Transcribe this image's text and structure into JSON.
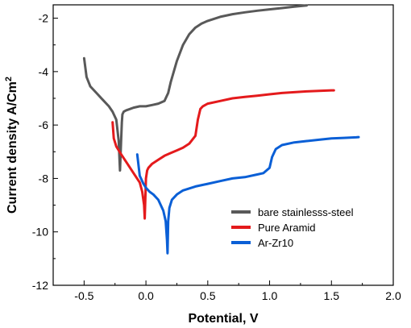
{
  "chart_data": {
    "type": "line",
    "xlabel": "Potential, V",
    "ylabel_main": "Current density A/Cm",
    "ylabel_sup": "2",
    "xlim": [
      -0.75,
      2.0
    ],
    "ylim": [
      -12,
      -1.5
    ],
    "xticks": [
      -0.5,
      0.0,
      0.5,
      1.0,
      1.5,
      2.0
    ],
    "xtick_labels": [
      "-0.5",
      "0.0",
      "0.5",
      "1.0",
      "1.5",
      "2.0"
    ],
    "yticks": [
      -2,
      -4,
      -6,
      -8,
      -10,
      -12
    ],
    "ytick_labels": [
      "-2",
      "-4",
      "-6",
      "-8",
      "-10",
      "-12"
    ],
    "grid": false,
    "legend_position": "lower-right",
    "series": [
      {
        "name": "bare stainlesss-steel",
        "color": "#595959",
        "x": [
          -0.5,
          -0.48,
          -0.45,
          -0.4,
          -0.35,
          -0.3,
          -0.27,
          -0.24,
          -0.22,
          -0.21,
          -0.2,
          -0.195,
          -0.19,
          -0.18,
          -0.16,
          -0.13,
          -0.1,
          -0.05,
          0.0,
          0.05,
          0.1,
          0.15,
          0.18,
          0.2,
          0.25,
          0.3,
          0.35,
          0.4,
          0.45,
          0.5,
          0.6,
          0.7,
          0.8,
          0.9,
          1.0,
          1.1,
          1.2,
          1.3
        ],
        "y": [
          -3.5,
          -4.2,
          -4.55,
          -4.8,
          -5.05,
          -5.3,
          -5.5,
          -5.8,
          -6.6,
          -7.7,
          -6.5,
          -5.9,
          -5.6,
          -5.5,
          -5.45,
          -5.4,
          -5.35,
          -5.3,
          -5.3,
          -5.25,
          -5.2,
          -5.1,
          -4.8,
          -4.4,
          -3.6,
          -3.0,
          -2.6,
          -2.35,
          -2.2,
          -2.1,
          -1.95,
          -1.85,
          -1.78,
          -1.72,
          -1.67,
          -1.62,
          -1.57,
          -1.52
        ]
      },
      {
        "name": "Pure Aramid",
        "color": "#e41a1c",
        "x": [
          -0.27,
          -0.26,
          -0.24,
          -0.2,
          -0.15,
          -0.1,
          -0.05,
          -0.03,
          -0.015,
          -0.01,
          -0.005,
          0.0,
          0.01,
          0.02,
          0.05,
          0.1,
          0.15,
          0.2,
          0.25,
          0.3,
          0.35,
          0.4,
          0.42,
          0.44,
          0.46,
          0.5,
          0.6,
          0.7,
          0.8,
          0.9,
          1.0,
          1.1,
          1.2,
          1.3,
          1.4,
          1.5,
          1.52
        ],
        "y": [
          -5.9,
          -6.5,
          -6.8,
          -7.1,
          -7.45,
          -7.8,
          -8.15,
          -8.5,
          -9.0,
          -9.5,
          -8.8,
          -8.0,
          -7.7,
          -7.6,
          -7.45,
          -7.3,
          -7.15,
          -7.05,
          -6.95,
          -6.85,
          -6.7,
          -6.4,
          -5.8,
          -5.4,
          -5.3,
          -5.2,
          -5.1,
          -5.0,
          -4.95,
          -4.9,
          -4.85,
          -4.8,
          -4.77,
          -4.74,
          -4.72,
          -4.7,
          -4.7
        ]
      },
      {
        "name": "Ar-Zr10",
        "color": "#0a5fd6",
        "x": [
          -0.07,
          -0.05,
          -0.02,
          0.0,
          0.03,
          0.06,
          0.1,
          0.14,
          0.16,
          0.17,
          0.175,
          0.18,
          0.19,
          0.21,
          0.25,
          0.3,
          0.4,
          0.5,
          0.6,
          0.7,
          0.8,
          0.9,
          0.95,
          1.0,
          1.02,
          1.05,
          1.1,
          1.2,
          1.3,
          1.4,
          1.5,
          1.6,
          1.7,
          1.72
        ],
        "y": [
          -7.1,
          -7.9,
          -8.2,
          -8.35,
          -8.5,
          -8.6,
          -8.8,
          -9.2,
          -9.6,
          -10.3,
          -10.8,
          -9.6,
          -9.1,
          -8.8,
          -8.6,
          -8.45,
          -8.3,
          -8.2,
          -8.1,
          -8.0,
          -7.95,
          -7.85,
          -7.8,
          -7.6,
          -7.2,
          -6.9,
          -6.75,
          -6.65,
          -6.6,
          -6.55,
          -6.5,
          -6.48,
          -6.46,
          -6.45
        ]
      }
    ]
  }
}
